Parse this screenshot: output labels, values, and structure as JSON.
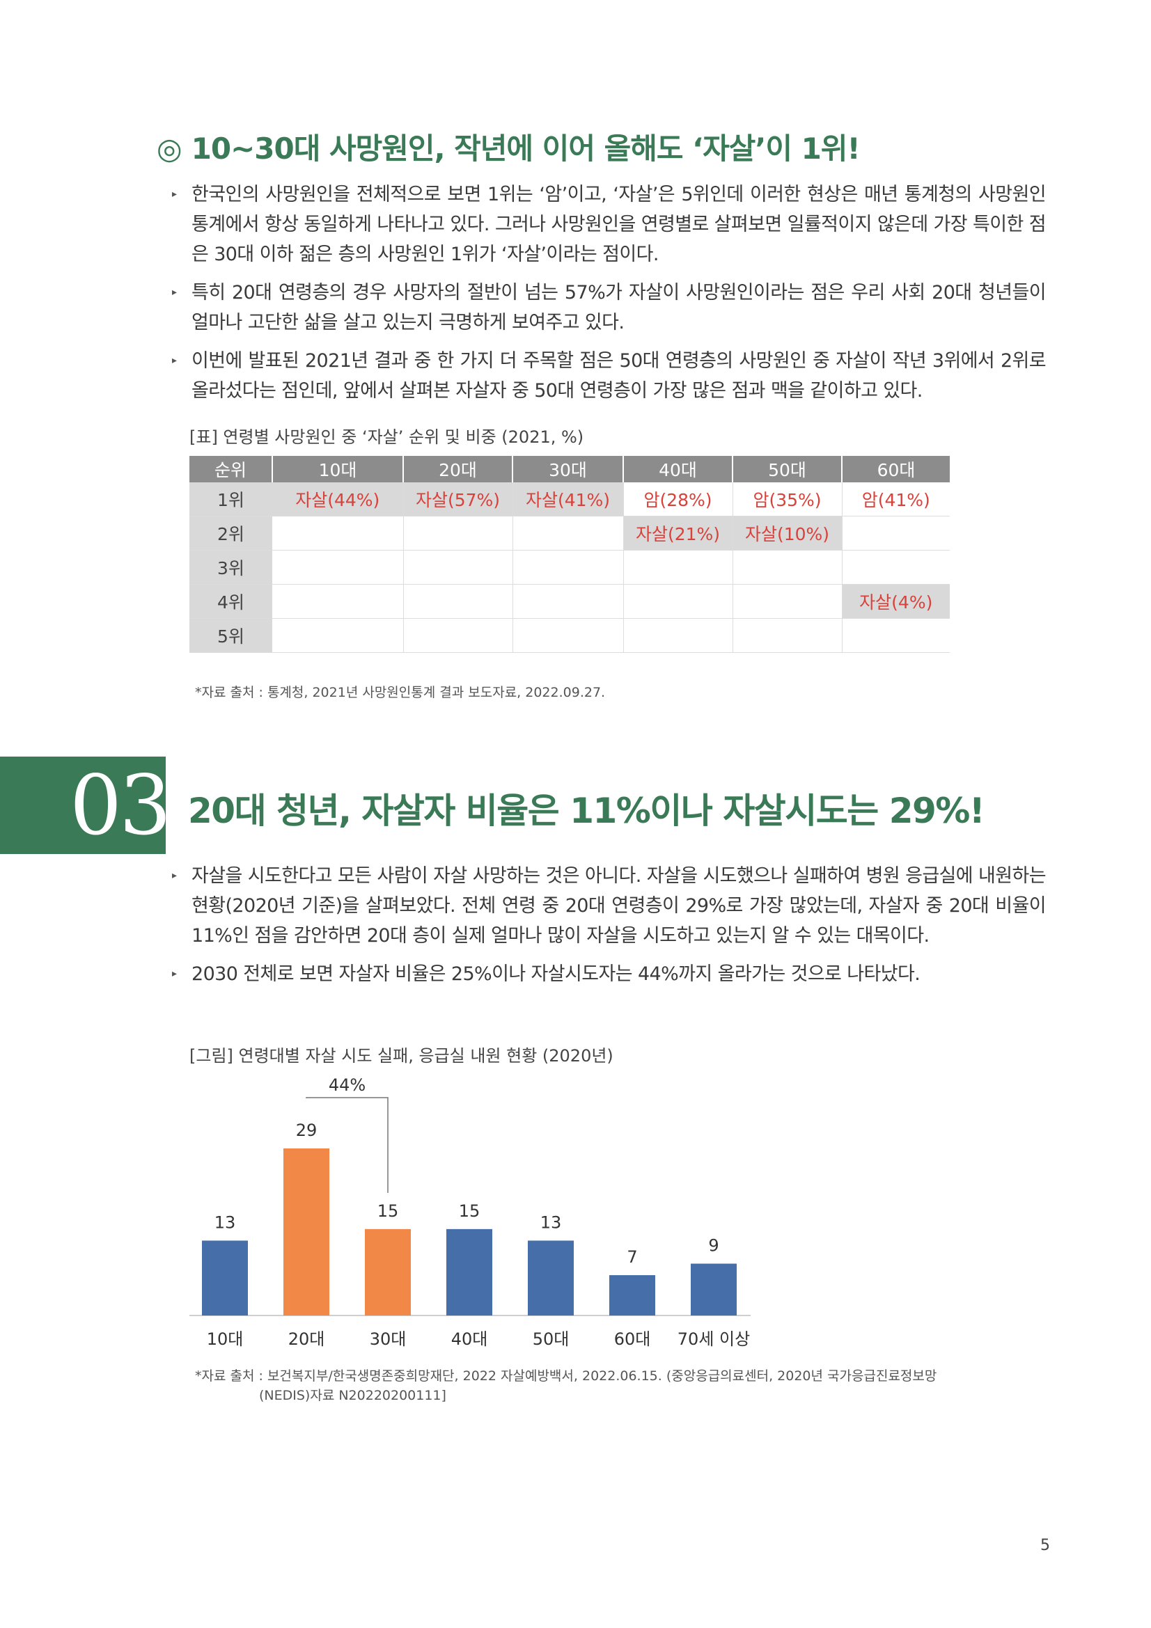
{
  "section1": {
    "mark": "◎",
    "title": "10~30대 사망원인, 작년에 이어 올해도 ‘자살’이 1위!",
    "bullets": [
      "한국인의 사망원인을 전체적으로 보면 1위는 ‘암’이고, ‘자살’은 5위인데 이러한 현상은 매년 통계청의 사망원인통계에서 항상 동일하게 나타나고 있다. 그러나 사망원인을 연령별로 살펴보면 일률적이지 않은데 가장 특이한 점은 30대 이하 젊은 층의 사망원인 1위가 ‘자살’이라는 점이다.",
      "특히 20대 연령층의 경우 사망자의 절반이 넘는 57%가 자살이 사망원인이라는 점은 우리 사회 20대 청년들이 얼마나 고단한 삶을 살고 있는지 극명하게 보여주고 있다.",
      "이번에 발표된 2021년 결과 중 한 가지 더 주목할 점은 50대 연령층의 사망원인 중 자살이 작년 3위에서 2위로 올라섰다는 점인데, 앞에서 살펴본 자살자 중 50대 연령층이 가장 많은 점과 맥을 같이하고 있다."
    ],
    "table_caption": "[표] 연령별 사망원인 중 ‘자살’ 순위 및 비중 (2021, %)",
    "table": {
      "headers": [
        "순위",
        "10대",
        "20대",
        "30대",
        "40대",
        "50대",
        "60대"
      ],
      "rows": [
        {
          "rank": "1위",
          "cells": [
            "자살(44%)",
            "자살(57%)",
            "자살(41%)",
            "암(28%)",
            "암(35%)",
            "암(41%)"
          ]
        },
        {
          "rank": "2위",
          "cells": [
            "",
            "",
            "",
            "자살(21%)",
            "자살(10%)",
            ""
          ]
        },
        {
          "rank": "3위",
          "cells": [
            "",
            "",
            "",
            "",
            "",
            ""
          ]
        },
        {
          "rank": "4위",
          "cells": [
            "",
            "",
            "",
            "",
            "",
            "자살(4%)"
          ]
        },
        {
          "rank": "5위",
          "cells": [
            "",
            "",
            "",
            "",
            "",
            ""
          ]
        }
      ]
    },
    "source": "*자료 출처 : 통계청, 2021년 사망원인통계 결과 보도자료, 2022.09.27."
  },
  "section2": {
    "number": "03",
    "title": "20대 청년, 자살자 비율은 11%이나 자살시도는 29%!",
    "bullets": [
      "자살을 시도한다고 모든 사람이 자살 사망하는 것은 아니다. 자살을 시도했으나 실패하여 병원 응급실에 내원하는 현황(2020년 기준)을 살펴보았다. 전체 연령 중 20대 연령층이 29%로 가장 많았는데, 자살자 중 20대 비율이 11%인 점을 감안하면 20대 층이 실제 얼마나 많이 자살을 시도하고 있는지 알 수 있는 대목이다.",
      "2030 전체로 보면 자살자 비율은 25%이나 자살시도자는 44%까지 올라가는 것으로 나타났다."
    ],
    "figure_caption": "[그림] 연령대별 자살 시도 실패, 응급실 내원 현황 (2020년)",
    "source_line1": "*자료 출처 : 보건복지부/한국생명존중희망재단, 2022 자살예방백서, 2022.06.15. (중앙응급의료센터, 2020년 국가응급진료정보망",
    "source_line2": "(NEDIS)자료 N20220200111]"
  },
  "chart_data": {
    "type": "bar",
    "categories": [
      "10대",
      "20대",
      "30대",
      "40대",
      "50대",
      "60대",
      "70세 이상"
    ],
    "values": [
      13,
      29,
      15,
      15,
      13,
      7,
      9
    ],
    "highlight": [
      false,
      true,
      true,
      false,
      false,
      false,
      false
    ],
    "bracket_label": "44%",
    "bracket_span": [
      "20대",
      "30대"
    ],
    "colors": {
      "default": "#466ea8",
      "highlight": "#f28848"
    },
    "ylim": [
      0,
      29
    ]
  },
  "colors": {
    "accent": "#3b7a57",
    "red_text": "#d9413a"
  },
  "page_number": "5"
}
